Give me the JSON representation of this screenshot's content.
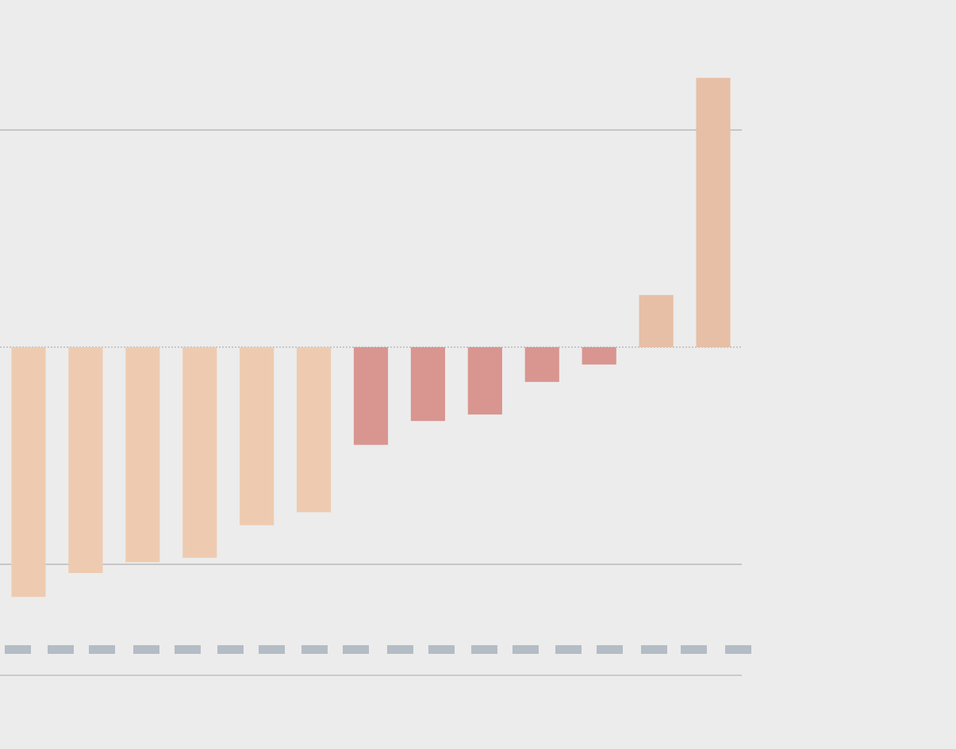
{
  "chart_data": {
    "type": "bar",
    "categories": [
      null,
      null,
      null,
      null,
      null,
      null,
      null,
      null,
      null,
      null,
      null,
      null,
      null
    ],
    "values": [
      -1.15,
      -1.04,
      -0.99,
      -0.97,
      -0.82,
      -0.76,
      -0.45,
      -0.34,
      -0.31,
      -0.16,
      -0.08,
      0.24,
      1.24
    ],
    "colors": [
      "#eecbb0",
      "#eecbb0",
      "#eecbb0",
      "#eecbb0",
      "#eecbb0",
      "#eecbb0",
      "#d99590",
      "#d99590",
      "#d99590",
      "#d99590",
      "#d99590",
      "#e6bfa6",
      "#e6bfa6"
    ],
    "ylim": [
      -1.2,
      1.4
    ],
    "yticks": [
      -1,
      0,
      1
    ],
    "grid": true
  }
}
